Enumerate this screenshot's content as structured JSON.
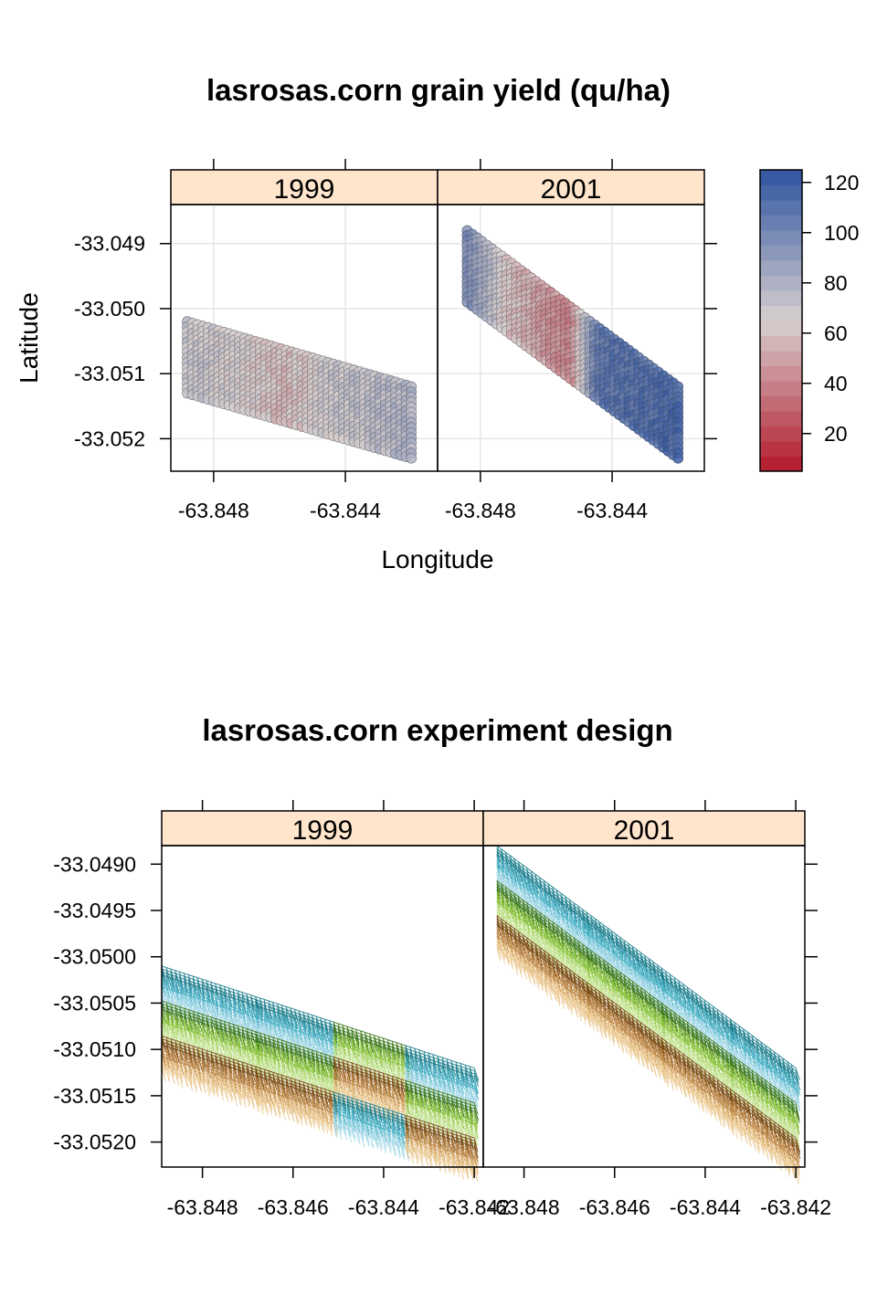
{
  "chart_data": [
    {
      "type": "scatter",
      "title": "lasrosas.corn grain yield (qu/ha)",
      "xlabel": "Longitude",
      "ylabel": "Latitude",
      "panels": [
        "1999",
        "2001"
      ],
      "x_ticks": [
        "-63.848",
        "-63.844"
      ],
      "y_ticks": [
        "-33.049",
        "-33.050",
        "-33.051",
        "-33.052"
      ],
      "xlim": [
        -63.8493,
        -63.8412
      ],
      "ylim": [
        -33.0525,
        -33.0484
      ],
      "grid": true,
      "colorkey": {
        "ticks": [
          "20",
          "40",
          "60",
          "80",
          "100",
          "120"
        ],
        "range": [
          5,
          125
        ],
        "low_color": "#B2182B",
        "mid_color": "#D8D0D0",
        "high_color": "#2F54A0"
      },
      "series": [
        {
          "name": "1999",
          "field": {
            "lon0": -63.8488,
            "lat0": -33.0502,
            "lon1": -63.842,
            "lat1": -33.0512,
            "lat_offset": -0.0011
          },
          "yield_profile": [
            {
              "pos": 0.0,
              "value": 72
            },
            {
              "pos": 0.25,
              "value": 66
            },
            {
              "pos": 0.45,
              "value": 58
            },
            {
              "pos": 0.6,
              "value": 68
            },
            {
              "pos": 1.0,
              "value": 80
            }
          ]
        },
        {
          "name": "2001",
          "field": {
            "lon0": -63.8484,
            "lat0": -33.0488,
            "lon1": -63.842,
            "lat1": -33.0512,
            "lat_offset": -0.0011
          },
          "yield_profile": [
            {
              "pos": 0.0,
              "value": 100
            },
            {
              "pos": 0.2,
              "value": 60
            },
            {
              "pos": 0.4,
              "value": 45
            },
            {
              "pos": 0.5,
              "value": 40
            },
            {
              "pos": 0.62,
              "value": 108
            },
            {
              "pos": 1.0,
              "value": 116
            }
          ]
        }
      ]
    },
    {
      "type": "scatter",
      "title": "lasrosas.corn experiment design",
      "xlabel": "",
      "ylabel": "",
      "panels": [
        "1999",
        "2001"
      ],
      "x_ticks": [
        "-63.848",
        "-63.846",
        "-63.844",
        "-63.842"
      ],
      "y_ticks": [
        "-33.0490",
        "-33.0495",
        "-33.0500",
        "-33.0505",
        "-33.0510",
        "-33.0515",
        "-33.0520"
      ],
      "xlim": [
        -63.8489,
        -63.8418
      ],
      "ylim": [
        -33.05227,
        -33.0488
      ],
      "grid": false,
      "band_colors": [
        "#1E7F8E",
        "#4BB3C8",
        "#A6D9E8",
        "#3E7A1C",
        "#8CC43C",
        "#C8E69A",
        "#7A4A14",
        "#C08A48",
        "#EBC990"
      ],
      "series": [
        {
          "name": "1999",
          "field": {
            "lon0": -63.8489,
            "lat0": -33.0501,
            "lon1": -63.842,
            "lat1": -33.0512,
            "lat_offset": -0.0011
          },
          "block_breaks": [
            0.0,
            0.3,
            0.55,
            0.78,
            1.0
          ],
          "block_order": [
            [
              0,
              1,
              2,
              3,
              4,
              5,
              6,
              7,
              8
            ],
            [
              0,
              1,
              2,
              3,
              4,
              5,
              6,
              7,
              8
            ],
            [
              3,
              4,
              5,
              6,
              7,
              8,
              0,
              1,
              2
            ],
            [
              0,
              1,
              2,
              3,
              4,
              5,
              6,
              7,
              8
            ]
          ]
        },
        {
          "name": "2001",
          "field": {
            "lon0": -63.8486,
            "lat0": -33.0488,
            "lon1": -63.842,
            "lat1": -33.0512,
            "lat_offset": -0.0011
          },
          "block_breaks": [
            0.0,
            0.3,
            0.55,
            0.78,
            1.0
          ],
          "block_order": [
            [
              0,
              1,
              2,
              3,
              4,
              5,
              6,
              7,
              8
            ],
            [
              0,
              1,
              2,
              3,
              4,
              5,
              6,
              7,
              8
            ],
            [
              0,
              1,
              2,
              3,
              4,
              5,
              6,
              7,
              8
            ],
            [
              0,
              1,
              2,
              3,
              4,
              5,
              6,
              7,
              8
            ]
          ]
        }
      ]
    }
  ]
}
